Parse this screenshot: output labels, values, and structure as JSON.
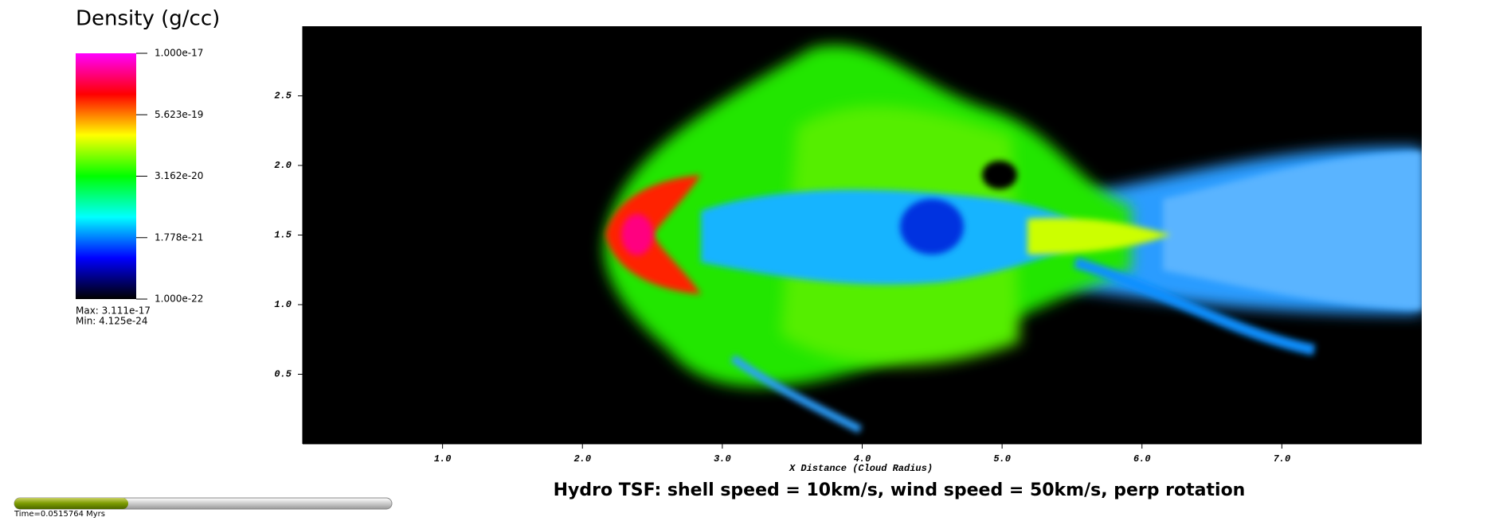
{
  "chart_data": {
    "type": "heatmap",
    "title": "Hydro TSF: shell speed = 10km/s, wind speed = 50km/s, perp rotation",
    "xlabel": "X Distance (Cloud Radius)",
    "xlim": [
      0,
      8
    ],
    "ylim": [
      0,
      3
    ],
    "xticks": [
      {
        "value": 1,
        "label": "1.0"
      },
      {
        "value": 2,
        "label": "2.0"
      },
      {
        "value": 3,
        "label": "3.0"
      },
      {
        "value": 4,
        "label": "4.0"
      },
      {
        "value": 5,
        "label": "5.0"
      },
      {
        "value": 6,
        "label": "6.0"
      },
      {
        "value": 7,
        "label": "7.0"
      }
    ],
    "yticks": [
      {
        "value": 0.5,
        "label": "0.5"
      },
      {
        "value": 1,
        "label": "1.0"
      },
      {
        "value": 1.5,
        "label": "1.5"
      },
      {
        "value": 2,
        "label": "2.0"
      },
      {
        "value": 2.5,
        "label": "2.5"
      }
    ],
    "colorbar": {
      "title": "Density (g/cc)",
      "log_scale": true,
      "lim": [
        1e-22,
        1e-17
      ],
      "ticks": [
        {
          "value": 1e-17,
          "label": "1.000e-17"
        },
        {
          "value": 5.623e-19,
          "label": "5.623e-19"
        },
        {
          "value": 3.162e-20,
          "label": "3.162e-20"
        },
        {
          "value": 1.778e-21,
          "label": "1.778e-21"
        },
        {
          "value": 1e-22,
          "label": "1.000e-22"
        }
      ],
      "colors": [
        "#000000",
        "#0000ff",
        "#00ffff",
        "#00ff00",
        "#ffff00",
        "#ff0000",
        "#ff00ff"
      ],
      "max_text": "Max:  3.111e-17",
      "min_text": "Min:  4.125e-24"
    },
    "time_text": "Time=0.0515764 Myrs"
  }
}
